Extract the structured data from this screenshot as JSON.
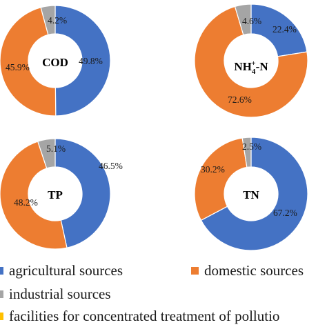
{
  "colors": {
    "agricultural": "#4472C4",
    "domestic": "#ED7D31",
    "industrial": "#A5A5A5",
    "facilities": "#FFC000"
  },
  "legend": {
    "agricultural": "agricultural sources",
    "domestic": "domestic sources",
    "industrial": "industrial sources",
    "facilities": "facilities for concentrated treatment of pollutio"
  },
  "chart_data": [
    {
      "type": "pie",
      "center_label": "COD",
      "slices": [
        {
          "category": "agricultural",
          "value": 49.8,
          "label": "49.8%"
        },
        {
          "category": "domestic",
          "value": 45.9,
          "label": "45.9%"
        },
        {
          "category": "industrial",
          "value": 4.2,
          "label": "4.2%"
        }
      ]
    },
    {
      "type": "pie",
      "center_label": "NH4+-N",
      "slices": [
        {
          "category": "agricultural",
          "value": 22.4,
          "label": "22.4%"
        },
        {
          "category": "domestic",
          "value": 72.6,
          "label": "72.6%"
        },
        {
          "category": "industrial",
          "value": 4.6,
          "label": "4.6%"
        }
      ]
    },
    {
      "type": "pie",
      "center_label": "TP",
      "slices": [
        {
          "category": "agricultural",
          "value": 46.5,
          "label": "46.5%"
        },
        {
          "category": "domestic",
          "value": 48.2,
          "label": "48.2%"
        },
        {
          "category": "industrial",
          "value": 5.1,
          "label": "5.1%"
        }
      ]
    },
    {
      "type": "pie",
      "center_label": "TN",
      "slices": [
        {
          "category": "agricultural",
          "value": 67.2,
          "label": "67.2%"
        },
        {
          "category": "domestic",
          "value": 30.2,
          "label": "30.2%"
        },
        {
          "category": "industrial",
          "value": 2.5,
          "label": "2.5%"
        }
      ]
    }
  ]
}
